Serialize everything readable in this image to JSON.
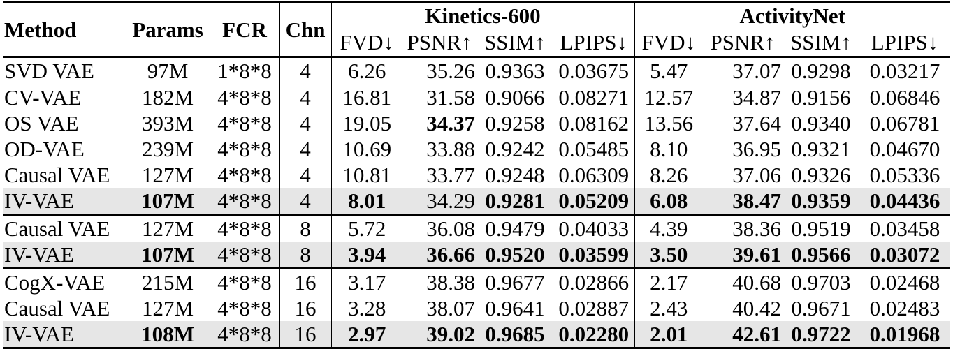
{
  "header": {
    "method": "Method",
    "params": "Params",
    "fcr": "FCR",
    "chn": "Chn",
    "group1": "Kinetics-600",
    "group2": "ActivityNet",
    "metrics": [
      "FVD↓",
      "PSNR↑",
      "SSIM↑",
      "LPIPS↓"
    ]
  },
  "rows": [
    {
      "method": "SVD VAE",
      "params": "97M",
      "fcr": "1*8*8",
      "chn": "4",
      "k": [
        "6.26",
        "35.26",
        "0.9363",
        "0.03675"
      ],
      "a": [
        "5.47",
        "37.07",
        "0.9298",
        "0.03217"
      ]
    },
    {
      "method": "CV-VAE",
      "params": "182M",
      "fcr": "4*8*8",
      "chn": "4",
      "k": [
        "16.81",
        "31.58",
        "0.9066",
        "0.08271"
      ],
      "a": [
        "12.57",
        "34.87",
        "0.9156",
        "0.06846"
      ]
    },
    {
      "method": "OS VAE",
      "params": "393M",
      "fcr": "4*8*8",
      "chn": "4",
      "k": [
        "19.05",
        "34.37",
        "0.9258",
        "0.08162"
      ],
      "a": [
        "13.56",
        "37.64",
        "0.9340",
        "0.06781"
      ]
    },
    {
      "method": "OD-VAE",
      "params": "239M",
      "fcr": "4*8*8",
      "chn": "4",
      "k": [
        "10.69",
        "33.88",
        "0.9242",
        "0.05485"
      ],
      "a": [
        "8.10",
        "36.95",
        "0.9321",
        "0.04670"
      ]
    },
    {
      "method": "Causal VAE",
      "params": "127M",
      "fcr": "4*8*8",
      "chn": "4",
      "k": [
        "10.81",
        "33.77",
        "0.9248",
        "0.06309"
      ],
      "a": [
        "8.26",
        "37.06",
        "0.9326",
        "0.05336"
      ]
    },
    {
      "method": "IV-VAE",
      "params": "107M",
      "fcr": "4*8*8",
      "chn": "4",
      "k": [
        "8.01",
        "34.29",
        "0.9281",
        "0.05209"
      ],
      "a": [
        "6.08",
        "38.47",
        "0.9359",
        "0.04436"
      ]
    },
    {
      "method": "Causal VAE",
      "params": "127M",
      "fcr": "4*8*8",
      "chn": "8",
      "k": [
        "5.72",
        "36.08",
        "0.9479",
        "0.04033"
      ],
      "a": [
        "4.39",
        "38.36",
        "0.9519",
        "0.03458"
      ]
    },
    {
      "method": "IV-VAE",
      "params": "107M",
      "fcr": "4*8*8",
      "chn": "8",
      "k": [
        "3.94",
        "36.66",
        "0.9520",
        "0.03599"
      ],
      "a": [
        "3.50",
        "39.61",
        "0.9566",
        "0.03072"
      ]
    },
    {
      "method": "CogX-VAE",
      "params": "215M",
      "fcr": "4*8*8",
      "chn": "16",
      "k": [
        "3.17",
        "38.38",
        "0.9677",
        "0.02866"
      ],
      "a": [
        "2.17",
        "40.68",
        "0.9703",
        "0.02468"
      ]
    },
    {
      "method": "Causal VAE",
      "params": "127M",
      "fcr": "4*8*8",
      "chn": "16",
      "k": [
        "3.28",
        "38.07",
        "0.9641",
        "0.02887"
      ],
      "a": [
        "2.43",
        "40.42",
        "0.9671",
        "0.02483"
      ]
    },
    {
      "method": "IV-VAE",
      "params": "108M",
      "fcr": "4*8*8",
      "chn": "16",
      "k": [
        "2.97",
        "39.02",
        "0.9685",
        "0.02280"
      ],
      "a": [
        "2.01",
        "42.61",
        "0.9722",
        "0.01968"
      ]
    }
  ]
}
